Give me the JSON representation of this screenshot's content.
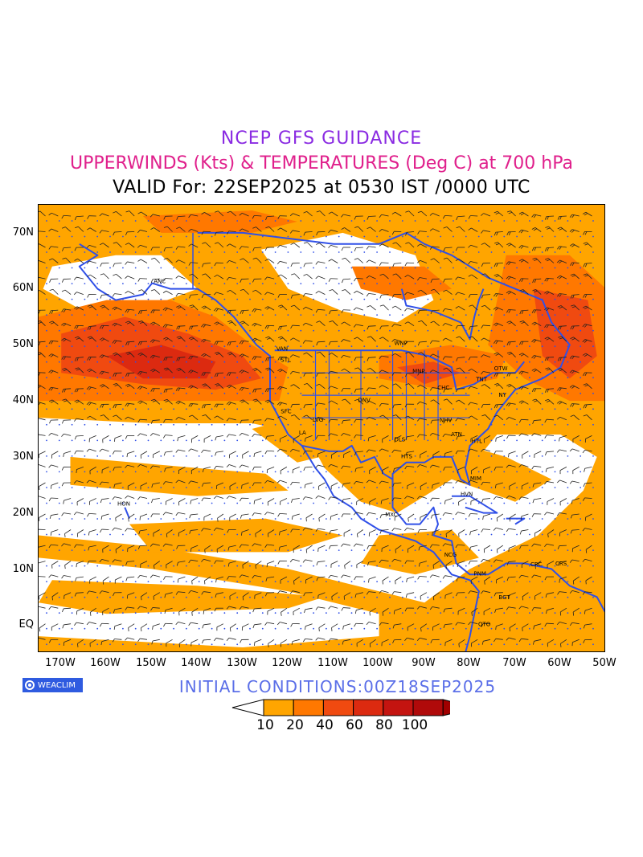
{
  "header": {
    "line1": "NCEP GFS GUIDANCE",
    "line2": "UPPERWINDS (Kts) & TEMPERATURES (Deg C) at 700 hPa",
    "line3": "VALID For: 22SEP2025 at 0530 IST /0000 UTC"
  },
  "colors": {
    "line1": "#8a2be2",
    "line2": "#e0208c",
    "coast": "#3050e8",
    "barbs": "#222222",
    "temp_labels": "#3050e8"
  },
  "map": {
    "lat_labels": [
      "70N",
      "60N",
      "50N",
      "40N",
      "30N",
      "20N",
      "10N",
      "EQ"
    ],
    "lon_labels": [
      "170W",
      "160W",
      "150W",
      "140W",
      "130W",
      "120W",
      "110W",
      "100W",
      "90W",
      "80W",
      "70W",
      "60W",
      "50W"
    ],
    "lat_range": [
      -5,
      75
    ],
    "lon_range": [
      -175,
      -50
    ],
    "station_labels": [
      "ANC",
      "VAN",
      "STL",
      "WNP",
      "MNP",
      "OTW",
      "TNT",
      "CHC",
      "DNV",
      "SFC",
      "LA",
      "LVG",
      "NY",
      "NHV",
      "ATN",
      "HTL",
      "DLS",
      "HTS",
      "MIM",
      "HVN",
      "MXC",
      "NCG",
      "PNM",
      "BGT",
      "CRC",
      "CRS",
      "QTO",
      "HON"
    ]
  },
  "legend": {
    "thresholds": [
      "10",
      "20",
      "40",
      "60",
      "80",
      "100"
    ],
    "colors": [
      "#ffffff",
      "#ffa500",
      "#ff7800",
      "#f04a10",
      "#dc2a10",
      "#c41410",
      "#b00a0a",
      "#a00000"
    ]
  },
  "footer": {
    "logo_text": "WEACLIM",
    "initial_conditions": "INITIAL CONDITIONS:00Z18SEP2025"
  }
}
